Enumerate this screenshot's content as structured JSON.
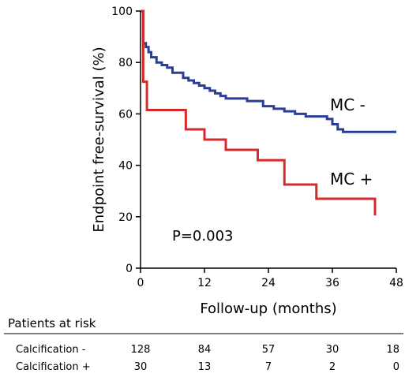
{
  "chart_data": {
    "type": "line",
    "step": true,
    "title": "",
    "xlabel": "Follow-up (months)",
    "ylabel": "Endpoint free-survival (%)",
    "xlim": [
      0,
      48
    ],
    "ylim": [
      0,
      100
    ],
    "xticks": [
      "0",
      "12",
      "24",
      "36",
      "48"
    ],
    "yticks": [
      "0",
      "20",
      "40",
      "60",
      "80",
      "100"
    ],
    "grid": false,
    "annotation": "P=0.003",
    "series": [
      {
        "name": "MC -",
        "color": "#2b3d96",
        "x": [
          0,
          0.5,
          1,
          1.5,
          2,
          3,
          4,
          5,
          6,
          8,
          9,
          10,
          11,
          12,
          13,
          14,
          15,
          16,
          18,
          20,
          23,
          25,
          27,
          29,
          31,
          33,
          35,
          36,
          37,
          38,
          40,
          48
        ],
        "y": [
          100,
          87.5,
          86,
          84,
          82,
          80,
          79,
          78,
          76,
          74,
          73,
          72,
          71,
          70,
          69,
          68,
          67,
          66,
          66,
          65,
          63,
          62,
          61,
          60,
          59,
          59,
          58,
          56,
          54,
          53,
          53,
          53
        ]
      },
      {
        "name": "MC +",
        "color": "#d42b2b",
        "x": [
          0,
          0.5,
          1.2,
          7,
          8.5,
          12,
          16,
          22,
          27,
          33,
          44
        ],
        "y": [
          100,
          72.5,
          61.5,
          61.5,
          54,
          50,
          46,
          42,
          32.5,
          27,
          20.5
        ]
      }
    ]
  },
  "risk_table": {
    "title": "Patients at risk",
    "rows": [
      {
        "label": "Calcification -",
        "values": [
          "128",
          "84",
          "57",
          "30",
          "18"
        ]
      },
      {
        "label": "Calcification +",
        "values": [
          "30",
          "13",
          "7",
          "2",
          "0"
        ]
      }
    ]
  }
}
